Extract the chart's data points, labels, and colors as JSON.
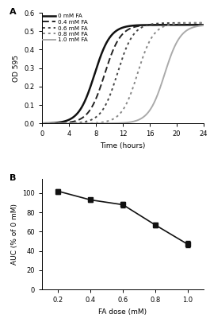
{
  "panel_A": {
    "title": "A",
    "xlabel": "Time (hours)",
    "ylabel": "OD 595",
    "xlim": [
      0,
      24
    ],
    "ylim": [
      0,
      0.6
    ],
    "xticks": [
      0,
      4,
      8,
      12,
      16,
      20,
      24
    ],
    "yticks": [
      0.0,
      0.1,
      0.2,
      0.3,
      0.4,
      0.5,
      0.6
    ],
    "curves": [
      {
        "label": "0 mM FA",
        "color": "#111111",
        "linestyle": "solid",
        "linewidth": 1.8,
        "midpoint": 7.8,
        "k": 0.85,
        "plateau": 0.535
      },
      {
        "label": "0.4 mM FA",
        "color": "#222222",
        "linestyle": "dashed",
        "linewidth": 1.4,
        "midpoint": 9.3,
        "k": 0.85,
        "plateau": 0.535
      },
      {
        "label": "0.6 mM FA",
        "color": "#444444",
        "linestyle": "dotted",
        "linewidth": 1.4,
        "midpoint": 11.2,
        "k": 0.85,
        "plateau": 0.545
      },
      {
        "label": "0.8 mM FA",
        "color": "#888888",
        "linestyle": "dotted",
        "linewidth": 1.4,
        "midpoint": 14.2,
        "k": 0.85,
        "plateau": 0.545
      },
      {
        "label": "1.0 mM FA",
        "color": "#aaaaaa",
        "linestyle": "solid",
        "linewidth": 1.4,
        "midpoint": 18.2,
        "k": 0.85,
        "plateau": 0.535
      }
    ]
  },
  "panel_B": {
    "title": "B",
    "xlabel": "FA dose (mM)",
    "ylabel": "AUC (% of 0 mM)",
    "xlim": [
      0.1,
      1.1
    ],
    "ylim": [
      0,
      115
    ],
    "xticks": [
      0.2,
      0.4,
      0.6,
      0.8,
      1.0
    ],
    "yticks": [
      0,
      20,
      40,
      60,
      80,
      100
    ],
    "x": [
      0.2,
      0.4,
      0.6,
      0.8,
      1.0
    ],
    "y": [
      102,
      93,
      88,
      67,
      47
    ],
    "yerr": [
      2.5,
      2.0,
      2.5,
      2.5,
      3.5
    ],
    "color": "#111111",
    "markersize": 4,
    "linewidth": 1.2
  }
}
